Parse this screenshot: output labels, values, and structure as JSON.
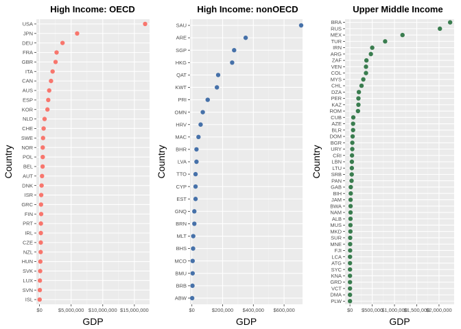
{
  "chart_data": [
    {
      "type": "scatter",
      "title": "High Income: OECD",
      "xlabel": "GDP",
      "ylabel": "Country",
      "color": "#F8766D",
      "xlim": [
        -500000,
        17400000
      ],
      "x_ticks": [
        0,
        5000000,
        10000000,
        15000000
      ],
      "x_tick_labels": [
        "$0",
        "$5,000,000",
        "$10,000,000",
        "$15,000,000"
      ],
      "categories": [
        "USA",
        "JPN",
        "DEU",
        "FRA",
        "GBR",
        "ITA",
        "CAN",
        "AUS",
        "ESP",
        "KOR",
        "NLD",
        "CHE",
        "SWE",
        "NOR",
        "POL",
        "BEL",
        "AUT",
        "DNK",
        "ISR",
        "GRC",
        "FIN",
        "PRT",
        "IRL",
        "CZE",
        "NZL",
        "HUN",
        "SVK",
        "LUX",
        "SVN",
        "ISL"
      ],
      "values": [
        16700000,
        5950000,
        3640000,
        2700000,
        2540000,
        2070000,
        1820000,
        1530000,
        1380000,
        1250000,
        800000,
        650000,
        560000,
        510000,
        510000,
        490000,
        400000,
        330000,
        270000,
        240000,
        260000,
        220000,
        210000,
        200000,
        180000,
        130000,
        100000,
        60000,
        45000,
        15000
      ]
    },
    {
      "type": "scatter",
      "title": "High Income: nonOECD",
      "xlabel": "GDP",
      "ylabel": "Country",
      "color": "#4671A9",
      "xlim": [
        -12000,
        720000
      ],
      "x_ticks": [
        0,
        200000,
        400000,
        600000
      ],
      "x_tick_labels": [
        "$0",
        "$200,000",
        "$400,000",
        "$600,000"
      ],
      "categories": [
        "SAU",
        "ARE",
        "SGP",
        "HKG",
        "QAT",
        "KWT",
        "PRI",
        "OMN",
        "HRV",
        "MAC",
        "BHR",
        "LVA",
        "TTO",
        "CYP",
        "EST",
        "GNQ",
        "BRN",
        "MLT",
        "BHS",
        "MCO",
        "BMU",
        "BRB",
        "ABW"
      ],
      "values": [
        711000,
        350000,
        275000,
        262000,
        171000,
        163000,
        103000,
        71000,
        57000,
        43000,
        30000,
        30000,
        24000,
        24000,
        24000,
        16000,
        16000,
        9000,
        8000,
        5000,
        5000,
        4000,
        2000
      ]
    },
    {
      "type": "scatter",
      "title": "Upper Middle Income",
      "xlabel": "GDP",
      "ylabel": "Country",
      "color": "#3A7D4F",
      "xlim": [
        -110000,
        2340000
      ],
      "x_ticks": [
        0,
        500000,
        1000000,
        1500000,
        2000000
      ],
      "x_tick_labels": [
        "$0",
        "$500,000",
        "$1,000,000",
        "$1,500,000",
        "$2,000,000"
      ],
      "categories": [
        "BRA",
        "RUS",
        "MEX",
        "TUR",
        "IRN",
        "ARG",
        "ZAF",
        "VEN",
        "COL",
        "MYS",
        "CHL",
        "DZA",
        "PER",
        "KAZ",
        "ROM",
        "CUB",
        "AZE",
        "BLR",
        "DOM",
        "BGR",
        "URY",
        "CRI",
        "LBN",
        "LTU",
        "SRB",
        "PAN",
        "GAB",
        "BIH",
        "JAM",
        "BWA",
        "NAM",
        "ALB",
        "MUS",
        "MKD",
        "SUR",
        "MNE",
        "FJI",
        "LCA",
        "ATG",
        "SYC",
        "KNA",
        "GRD",
        "VCT",
        "DMA",
        "PLW"
      ],
      "values": [
        2250000,
        2020000,
        1180000,
        790000,
        500000,
        470000,
        370000,
        360000,
        360000,
        300000,
        260000,
        200000,
        190000,
        190000,
        180000,
        75000,
        70000,
        70000,
        60000,
        53000,
        52000,
        46000,
        43000,
        42000,
        40000,
        36000,
        18000,
        18000,
        14000,
        14000,
        13000,
        12000,
        11000,
        10000,
        5000,
        4000,
        4000,
        1400,
        1200,
        1100,
        750,
        800,
        700,
        500,
        250
      ]
    }
  ]
}
